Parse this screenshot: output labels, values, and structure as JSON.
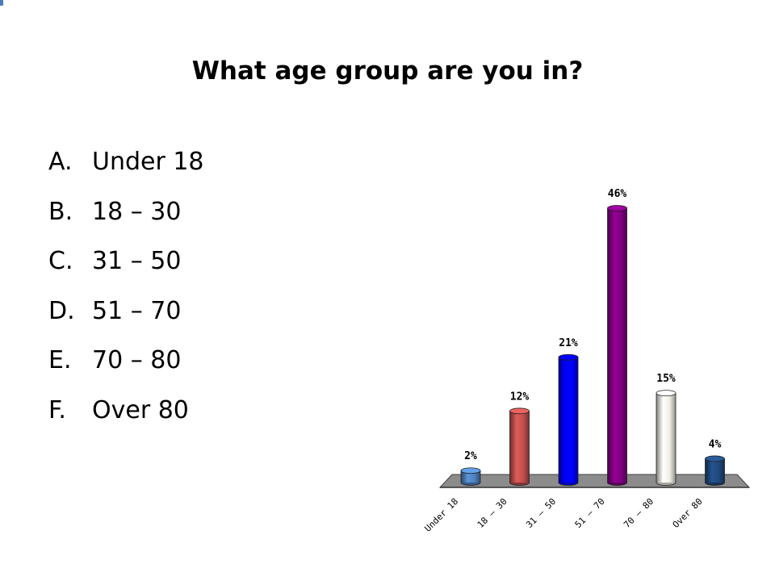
{
  "slide": {
    "title": "What age group are you in?",
    "options": [
      {
        "letter": "A.",
        "text": "Under 18"
      },
      {
        "letter": "B.",
        "text": "18 – 30"
      },
      {
        "letter": "C.",
        "text": "31 – 50"
      },
      {
        "letter": "D.",
        "text": "51 – 70"
      },
      {
        "letter": "E.",
        "text": "70 – 80"
      },
      {
        "letter": "F.",
        "text": "Over 80"
      }
    ]
  },
  "chart_data": {
    "type": "bar",
    "categories": [
      "Under 18",
      "18 – 30",
      "31 – 50",
      "51 – 70",
      "70 – 80",
      "Over 80"
    ],
    "values": [
      2,
      12,
      21,
      46,
      15,
      4
    ],
    "value_labels": [
      "2%",
      "12%",
      "21%",
      "46%",
      "15%",
      "4%"
    ],
    "colors": [
      "#4f81bd",
      "#c0504d",
      "#0000ff",
      "#800080",
      "#eeece1",
      "#1f497d"
    ],
    "ylim": [
      0,
      46
    ],
    "grid": false,
    "legend": "none"
  }
}
